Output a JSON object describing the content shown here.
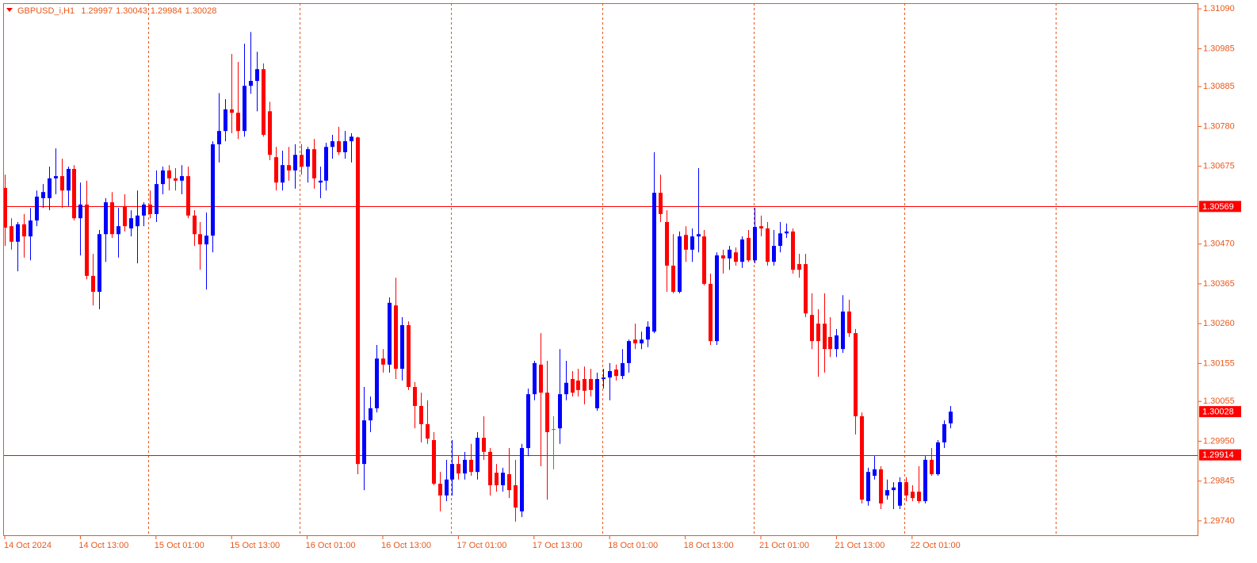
{
  "chart_data": {
    "type": "candlestick",
    "title": "GBPUSD_i,H1",
    "categories": [
      "14 Oct 2024",
      null,
      null,
      null,
      null,
      null,
      null,
      null,
      null,
      null,
      null,
      null,
      "14 Oct 13:00",
      null,
      null,
      null,
      null,
      null,
      null,
      null,
      null,
      null,
      null,
      null,
      "15 Oct 01:00",
      null,
      null,
      null,
      null,
      null,
      null,
      null,
      null,
      null,
      null,
      null,
      "15 Oct 13:00",
      null,
      null,
      null,
      null,
      null,
      null,
      null,
      null,
      null,
      null,
      null,
      "16 Oct 01:00",
      null,
      null,
      null,
      null,
      null,
      null,
      null,
      null,
      null,
      null,
      null,
      "16 Oct 13:00",
      null,
      null,
      null,
      null,
      null,
      null,
      null,
      null,
      null,
      null,
      null,
      "17 Oct 01:00",
      null,
      null,
      null,
      null,
      null,
      null,
      null,
      null,
      null,
      null,
      null,
      "17 Oct 13:00",
      null,
      null,
      null,
      null,
      null,
      null,
      null,
      null,
      null,
      null,
      null,
      "18 Oct 01:00",
      null,
      null,
      null,
      null,
      null,
      null,
      null,
      null,
      null,
      null,
      null,
      "18 Oct 13:00",
      null,
      null,
      null,
      null,
      null,
      null,
      null,
      null,
      null,
      null,
      null,
      "21 Oct 01:00",
      null,
      null,
      null,
      null,
      null,
      null,
      null,
      null,
      null,
      null,
      null,
      "21 Oct 13:00",
      null,
      null,
      null,
      null,
      null,
      null,
      null,
      null,
      null,
      null,
      null,
      "22 Oct 01:00",
      null,
      null,
      null,
      null,
      null,
      null
    ],
    "open": [
      1.30618,
      1.30517,
      1.30476,
      1.30522,
      1.3049,
      1.30532,
      1.30591,
      1.30591,
      1.30643,
      1.30649,
      1.30611,
      1.30668,
      1.30538,
      1.30574,
      1.30386,
      1.30344,
      1.30496,
      1.3058,
      1.30496,
      1.3057,
      1.30511,
      1.30517,
      1.30545,
      1.30574,
      1.30549,
      1.30628,
      1.30664,
      1.30643,
      1.30637,
      1.30649,
      1.30545,
      1.30496,
      1.30469,
      1.30492,
      1.30733,
      1.30768,
      1.30825,
      1.30816,
      1.30768,
      1.30887,
      1.309,
      1.30931,
      1.3082,
      1.30699,
      1.30632,
      1.30678,
      1.30664,
      1.30705,
      1.30674,
      1.3072,
      1.30632,
      1.30637,
      1.30726,
      1.30741,
      1.30712,
      1.30741,
      1.30751,
      1.2989,
      1.30005,
      1.30037,
      1.30168,
      1.30152,
      1.30308,
      1.30141,
      1.30256,
      1.30093,
      1.30043,
      1.29995,
      1.29953,
      1.29838,
      1.29807,
      1.29849,
      1.2989,
      1.29865,
      1.29901,
      1.29869,
      1.29959,
      1.29922,
      1.29867,
      1.29834,
      1.29863,
      1.29834,
      1.29765,
      1.29932,
      1.30074,
      1.30152,
      1.30078,
      1.29982,
      1.29984,
      1.30074,
      1.30114,
      1.3011,
      1.30114,
      1.30114,
      1.30037,
      1.30114,
      1.30118,
      1.30139,
      1.30122,
      1.30156,
      1.30218,
      1.30208,
      1.30218,
      1.30239,
      1.30605,
      1.30528,
      1.30413,
      1.30344,
      1.30494,
      1.30455,
      1.3049,
      1.3049,
      1.30365,
      1.30214,
      1.3044,
      1.30432,
      1.30448,
      1.30423,
      1.30486,
      1.30427,
      1.30517,
      1.30511,
      1.30423,
      1.30465,
      1.30498,
      1.30503,
      1.30417,
      1.30417,
      1.30283,
      1.3026,
      1.3026,
      1.30225,
      1.30193,
      1.30193,
      1.30292,
      1.30235,
      1.30016,
      1.29792,
      1.29859,
      1.29876,
      1.29807,
      1.29821,
      1.2978,
      1.29842,
      1.29817,
      1.29817,
      1.29792,
      1.29901,
      1.29863,
      1.29947,
      1.29997
    ],
    "high": [
      1.30653,
      1.30538,
      1.30528,
      1.30549,
      1.30565,
      1.30611,
      1.30628,
      1.30674,
      1.30722,
      1.30695,
      1.30674,
      1.30678,
      1.30632,
      1.30637,
      1.30444,
      1.30507,
      1.30591,
      1.30607,
      1.30565,
      1.30601,
      1.30559,
      1.30611,
      1.3058,
      1.30611,
      1.30664,
      1.30674,
      1.30678,
      1.3067,
      1.30678,
      1.30674,
      1.30559,
      1.30528,
      1.30553,
      1.30741,
      1.30868,
      1.30852,
      1.30971,
      1.3095,
      1.30998,
      1.31029,
      1.30977,
      1.30946,
      1.30845,
      1.30726,
      1.30716,
      1.30726,
      1.30733,
      1.30733,
      1.30726,
      1.30747,
      1.30674,
      1.30737,
      1.30758,
      1.30779,
      1.30768,
      1.30762,
      1.30753,
      1.30093,
      1.30068,
      1.30204,
      1.30193,
      1.30329,
      1.30381,
      1.30277,
      1.30266,
      1.30106,
      1.30078,
      1.30058,
      1.29974,
      1.29869,
      1.29901,
      1.29953,
      1.29911,
      1.29922,
      1.29943,
      1.29974,
      1.30016,
      1.29932,
      1.2989,
      1.2988,
      1.29932,
      1.29901,
      1.29943,
      1.30089,
      1.30162,
      1.30235,
      1.30162,
      1.30016,
      1.30193,
      1.30162,
      1.30135,
      1.30141,
      1.30147,
      1.30141,
      1.30131,
      1.30141,
      1.30156,
      1.30152,
      1.30193,
      1.30218,
      1.3026,
      1.30239,
      1.30266,
      1.30712,
      1.30653,
      1.30559,
      1.30496,
      1.30503,
      1.30517,
      1.30511,
      1.3067,
      1.30507,
      1.30392,
      1.30448,
      1.30455,
      1.30465,
      1.30461,
      1.3049,
      1.30507,
      1.30565,
      1.30545,
      1.30528,
      1.30507,
      1.30528,
      1.30524,
      1.30511,
      1.30444,
      1.30444,
      1.3034,
      1.30298,
      1.3034,
      1.30277,
      1.30246,
      1.30335,
      1.30323,
      1.30246,
      1.30026,
      1.2988,
      1.29911,
      1.29884,
      1.29849,
      1.29842,
      1.29855,
      1.29855,
      1.29834,
      1.29884,
      1.29911,
      1.29932,
      1.29953,
      1.30005,
      1.30043
    ],
    "low": [
      1.30465,
      1.30455,
      1.30398,
      1.30434,
      1.30427,
      1.30517,
      1.30565,
      1.30559,
      1.30601,
      1.30565,
      1.3057,
      1.30532,
      1.3044,
      1.30377,
      1.30308,
      1.30298,
      1.30423,
      1.30486,
      1.30434,
      1.30503,
      1.3049,
      1.30419,
      1.30517,
      1.30538,
      1.30528,
      1.30601,
      1.30611,
      1.30611,
      1.30601,
      1.30538,
      1.30465,
      1.30402,
      1.3035,
      1.30448,
      1.30685,
      1.30741,
      1.30762,
      1.30747,
      1.30753,
      1.30866,
      1.3082,
      1.30753,
      1.30691,
      1.30611,
      1.30611,
      1.30637,
      1.30616,
      1.30653,
      1.30632,
      1.30616,
      1.30591,
      1.30611,
      1.30695,
      1.30705,
      1.30695,
      1.30685,
      1.29863,
      1.29821,
      1.29974,
      1.30026,
      1.30131,
      1.30131,
      1.30114,
      1.3011,
      1.30085,
      1.29984,
      1.29947,
      1.29943,
      1.29834,
      1.29765,
      1.29792,
      1.29807,
      1.29849,
      1.29849,
      1.29859,
      1.29849,
      1.29901,
      1.29807,
      1.29817,
      1.29817,
      1.298,
      1.29738,
      1.2975,
      1.29911,
      1.30058,
      1.29884,
      1.29796,
      1.29876,
      1.29943,
      1.30058,
      1.30068,
      1.30068,
      1.30047,
      1.30068,
      1.3003,
      1.30089,
      1.30058,
      1.3011,
      1.30114,
      1.30131,
      1.30193,
      1.30193,
      1.30198,
      1.30235,
      1.30528,
      1.30344,
      1.3034,
      1.3034,
      1.30423,
      1.30423,
      1.30448,
      1.30361,
      1.30204,
      1.30204,
      1.30392,
      1.30402,
      1.30413,
      1.30407,
      1.30423,
      1.30419,
      1.3049,
      1.30413,
      1.30413,
      1.30448,
      1.30486,
      1.30392,
      1.30381,
      1.30277,
      1.30193,
      1.3012,
      1.30131,
      1.30172,
      1.30172,
      1.30183,
      1.30225,
      1.29968,
      1.29786,
      1.2978,
      1.29849,
      1.29771,
      1.29796,
      1.29771,
      1.29771,
      1.29792,
      1.29792,
      1.29786,
      1.29786,
      1.29859,
      1.29859,
      1.29932,
      1.29984
    ],
    "close": [
      1.30513,
      1.30476,
      1.30522,
      1.3049,
      1.30532,
      1.30595,
      1.30607,
      1.30643,
      1.30649,
      1.30611,
      1.30668,
      1.30538,
      1.30574,
      1.30386,
      1.30344,
      1.30496,
      1.3058,
      1.30496,
      1.30517,
      1.30517,
      1.30538,
      1.30545,
      1.30574,
      1.30549,
      1.30628,
      1.30664,
      1.30643,
      1.30637,
      1.30649,
      1.30545,
      1.30496,
      1.30469,
      1.30492,
      1.30733,
      1.30768,
      1.30825,
      1.30816,
      1.30768,
      1.30887,
      1.309,
      1.30931,
      1.30758,
      1.30705,
      1.30632,
      1.30678,
      1.30664,
      1.30705,
      1.30674,
      1.3072,
      1.30643,
      1.30637,
      1.30726,
      1.30741,
      1.30712,
      1.30741,
      1.30753,
      1.2989,
      1.30005,
      1.30037,
      1.30168,
      1.30152,
      1.30315,
      1.30141,
      1.30256,
      1.30093,
      1.30043,
      1.29995,
      1.29957,
      1.29838,
      1.29807,
      1.29849,
      1.2989,
      1.29865,
      1.29901,
      1.29869,
      1.29959,
      1.29922,
      1.29834,
      1.29834,
      1.29867,
      1.29821,
      1.29775,
      1.29932,
      1.30074,
      1.30156,
      1.30078,
      1.29974,
      1.29982,
      1.30074,
      1.30104,
      1.30078,
      1.30085,
      1.30083,
      1.30085,
      1.30114,
      1.30118,
      1.30135,
      1.30122,
      1.30156,
      1.30214,
      1.30208,
      1.30218,
      1.30252,
      1.30605,
      1.30549,
      1.30413,
      1.30344,
      1.3049,
      1.30455,
      1.3049,
      1.30496,
      1.30365,
      1.30214,
      1.3044,
      1.30432,
      1.30455,
      1.30423,
      1.30482,
      1.30427,
      1.30515,
      1.30511,
      1.30423,
      1.30465,
      1.30498,
      1.30503,
      1.30402,
      1.30402,
      1.30287,
      1.30214,
      1.30214,
      1.30193,
      1.30193,
      1.30229,
      1.30292,
      1.30235,
      1.30016,
      1.29796,
      1.29869,
      1.29876,
      1.29786,
      1.29821,
      1.29828,
      1.29842,
      1.29807,
      1.298,
      1.29792,
      1.29901,
      1.29863,
      1.29947,
      1.29995,
      1.30028
    ],
    "up_color": "#0000ff",
    "down_color": "#ff0000",
    "doji_color": "#00c000",
    "axis_color": "#e8581c",
    "price_line_color": "#ff0000",
    "price_lines": [
      1.30569,
      1.29914
    ],
    "ylim": [
      1.297,
      1.31105
    ],
    "yticks": [
      {
        "value": 1.3109,
        "label": "1.31090"
      },
      1.30985,
      1.30885,
      {
        "value": 1.3078,
        "label": "1.30780"
      },
      1.30675,
      {
        "value": 1.3047,
        "label": "1.30470"
      },
      1.30365,
      {
        "value": 1.3026,
        "label": "1.30260"
      },
      1.30155,
      1.30055,
      {
        "value": 1.2995,
        "label": "1.29950"
      },
      1.29845,
      {
        "value": 1.2974,
        "label": "1.29740"
      }
    ]
  }
}
